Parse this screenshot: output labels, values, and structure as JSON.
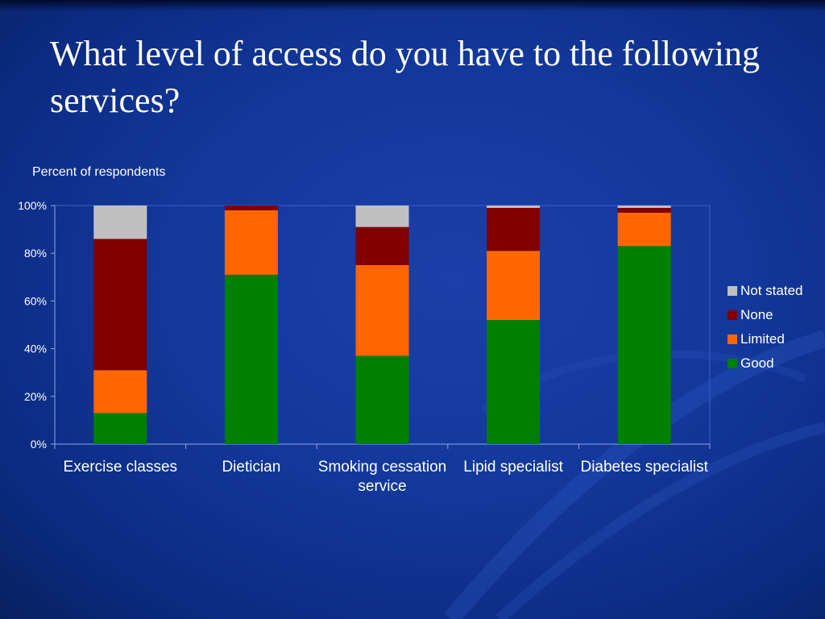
{
  "slide": {
    "title": "What level of access do you have to the following services?"
  },
  "chart_data": {
    "type": "bar",
    "stacked": true,
    "ylabel": "Percent of respondents",
    "ylim": [
      0,
      100
    ],
    "yticks": [
      "0%",
      "20%",
      "40%",
      "60%",
      "80%",
      "100%"
    ],
    "categories": [
      "Exercise classes",
      "Dietician",
      "Smoking cessation service",
      "Lipid specialist",
      "Diabetes specialist"
    ],
    "series": [
      {
        "name": "Good",
        "color": "#008000",
        "values": [
          13,
          71,
          37,
          52,
          83
        ]
      },
      {
        "name": "Limited",
        "color": "#ff6600",
        "values": [
          18,
          27,
          38,
          29,
          14
        ]
      },
      {
        "name": "None",
        "color": "#800000",
        "values": [
          55,
          2,
          16,
          18,
          2
        ]
      },
      {
        "name": "Not stated",
        "color": "#c0c0c0",
        "values": [
          14,
          0,
          9,
          1,
          1
        ]
      }
    ],
    "legend_order": [
      "Not stated",
      "None",
      "Limited",
      "Good"
    ],
    "legend_position": "right",
    "grid": false
  }
}
